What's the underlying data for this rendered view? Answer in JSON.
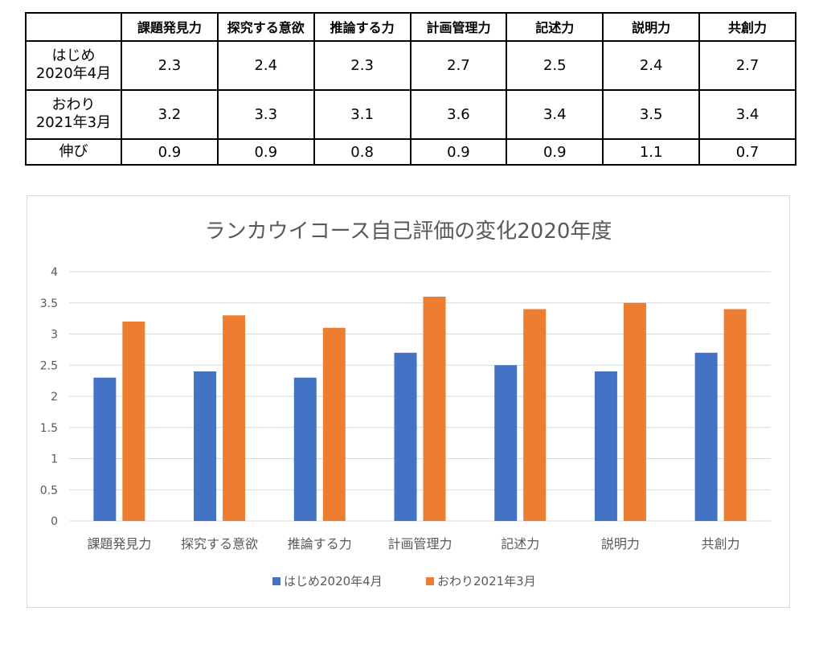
{
  "table": {
    "headers": [
      "",
      "課題発見力",
      "探究する意欲",
      "推論する力",
      "計画管理力",
      "記述力",
      "説明力",
      "共創力"
    ],
    "rows": [
      {
        "label_line1": "はじめ",
        "label_line2": "2020年4月",
        "values": [
          "2.3",
          "2.4",
          "2.3",
          "2.7",
          "2.5",
          "2.4",
          "2.7"
        ]
      },
      {
        "label_line1": "おわり",
        "label_line2": "2021年3月",
        "values": [
          "3.2",
          "3.3",
          "3.1",
          "3.6",
          "3.4",
          "3.5",
          "3.4"
        ]
      },
      {
        "label_line1": "伸び",
        "label_line2": "",
        "values": [
          "0.9",
          "0.9",
          "0.8",
          "0.9",
          "0.9",
          "1.1",
          "0.7"
        ]
      }
    ]
  },
  "chart_data": {
    "type": "bar",
    "title": "ランカウイコース自己評価の変化2020年度",
    "categories": [
      "課題発見力",
      "探究する意欲",
      "推論する力",
      "計画管理力",
      "記述力",
      "説明力",
      "共創力"
    ],
    "series": [
      {
        "name": "はじめ2020年4月",
        "color": "#4472c4",
        "values": [
          2.3,
          2.4,
          2.3,
          2.7,
          2.5,
          2.4,
          2.7
        ]
      },
      {
        "name": "おわり2021年3月",
        "color": "#ed7d31",
        "values": [
          3.2,
          3.3,
          3.1,
          3.6,
          3.4,
          3.5,
          3.4
        ]
      }
    ],
    "ylim": [
      0,
      4
    ],
    "yticks": [
      "0",
      "0.5",
      "1",
      "1.5",
      "2",
      "2.5",
      "3",
      "3.5",
      "4"
    ],
    "grid": true,
    "legend": "bottom",
    "xlabel": "",
    "ylabel": ""
  }
}
